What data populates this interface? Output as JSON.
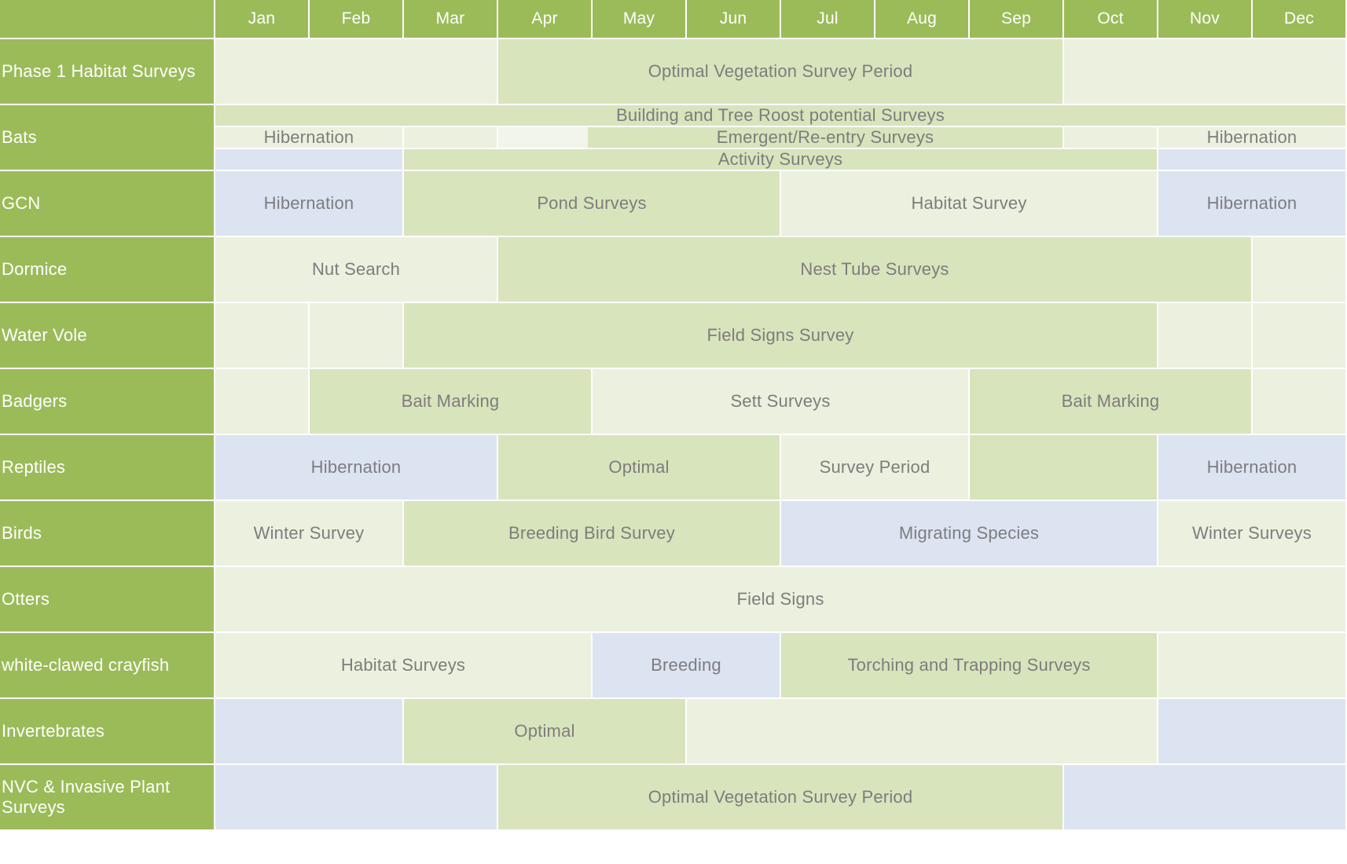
{
  "months": [
    "Jan",
    "Feb",
    "Mar",
    "Apr",
    "May",
    "Jun",
    "Jul",
    "Aug",
    "Sep",
    "Oct",
    "Nov",
    "Dec"
  ],
  "colors": {
    "header": "#9bbb59",
    "light": "#ebf1de",
    "mid": "#d8e4bc",
    "blue": "#dce4f2",
    "pale": "#f1f5ea",
    "text": "#7d7d7d"
  },
  "rows": [
    {
      "name": "Phase 1 Habitat Surveys",
      "lines": [
        [
          {
            "from": 1,
            "to": 3,
            "tone": "light",
            "label": ""
          },
          {
            "from": 4,
            "to": 9,
            "tone": "mid",
            "label": "Optimal Vegetation Survey Period"
          },
          {
            "from": 10,
            "to": 12,
            "tone": "light",
            "label": ""
          }
        ]
      ]
    },
    {
      "name": "Bats",
      "lines": [
        [
          {
            "from": 1,
            "to": 12,
            "tone": "mid",
            "label": "Building and Tree Roost potential Surveys"
          }
        ],
        [
          {
            "from": 1,
            "to": 2,
            "tone": "light",
            "label": "Hibernation"
          },
          {
            "from": 3,
            "to": 3,
            "tone": "light",
            "label": ""
          },
          {
            "from": 4,
            "to": 4.95,
            "tone": "pale",
            "label": ""
          },
          {
            "from": 4.95,
            "to": 9,
            "tone": "mid",
            "label": "Emergent/Re-entry Surveys"
          },
          {
            "from": 10,
            "to": 10,
            "tone": "light",
            "label": ""
          },
          {
            "from": 11,
            "to": 12,
            "tone": "light",
            "label": "Hibernation"
          }
        ],
        [
          {
            "from": 1,
            "to": 2,
            "tone": "blue",
            "label": ""
          },
          {
            "from": 3,
            "to": 10,
            "tone": "mid",
            "label": "Activity Surveys"
          },
          {
            "from": 11,
            "to": 12,
            "tone": "blue",
            "label": ""
          }
        ]
      ]
    },
    {
      "name": "GCN",
      "lines": [
        [
          {
            "from": 1,
            "to": 2,
            "tone": "blue",
            "label": "Hibernation"
          },
          {
            "from": 3,
            "to": 6,
            "tone": "mid",
            "label": "Pond Surveys"
          },
          {
            "from": 7,
            "to": 10,
            "tone": "light",
            "label": "Habitat Survey"
          },
          {
            "from": 11,
            "to": 12,
            "tone": "blue",
            "label": "Hibernation"
          }
        ]
      ]
    },
    {
      "name": "Dormice",
      "lines": [
        [
          {
            "from": 1,
            "to": 3,
            "tone": "light",
            "label": "Nut Search"
          },
          {
            "from": 4,
            "to": 11,
            "tone": "mid",
            "label": "Nest Tube Surveys"
          },
          {
            "from": 12,
            "to": 12,
            "tone": "light",
            "label": ""
          }
        ]
      ]
    },
    {
      "name": "Water Vole",
      "lines": [
        [
          {
            "from": 1,
            "to": 1,
            "tone": "light",
            "label": ""
          },
          {
            "from": 2,
            "to": 2,
            "tone": "light",
            "label": ""
          },
          {
            "from": 3,
            "to": 10,
            "tone": "mid",
            "label": "Field Signs Survey"
          },
          {
            "from": 11,
            "to": 11,
            "tone": "light",
            "label": ""
          },
          {
            "from": 12,
            "to": 12,
            "tone": "light",
            "label": ""
          }
        ]
      ]
    },
    {
      "name": "Badgers",
      "lines": [
        [
          {
            "from": 1,
            "to": 1,
            "tone": "light",
            "label": ""
          },
          {
            "from": 2,
            "to": 4,
            "tone": "mid",
            "label": "Bait Marking"
          },
          {
            "from": 5,
            "to": 8,
            "tone": "light",
            "label": "Sett  Surveys"
          },
          {
            "from": 9,
            "to": 11,
            "tone": "mid",
            "label": "Bait Marking"
          },
          {
            "from": 12,
            "to": 12,
            "tone": "light",
            "label": ""
          }
        ]
      ]
    },
    {
      "name": "Reptiles",
      "lines": [
        [
          {
            "from": 1,
            "to": 3,
            "tone": "blue",
            "label": "Hibernation"
          },
          {
            "from": 4,
            "to": 6,
            "tone": "mid",
            "label": "Optimal"
          },
          {
            "from": 7,
            "to": 8,
            "tone": "light",
            "label": "Survey Period"
          },
          {
            "from": 9,
            "to": 10,
            "tone": "mid",
            "label": ""
          },
          {
            "from": 11,
            "to": 12,
            "tone": "blue",
            "label": "Hibernation"
          }
        ]
      ]
    },
    {
      "name": "Birds",
      "lines": [
        [
          {
            "from": 1,
            "to": 2,
            "tone": "light",
            "label": "Winter Survey"
          },
          {
            "from": 3,
            "to": 6,
            "tone": "mid",
            "label": "Breeding Bird Survey"
          },
          {
            "from": 7,
            "to": 10,
            "tone": "blue",
            "label": "Migrating Species"
          },
          {
            "from": 11,
            "to": 12,
            "tone": "light",
            "label": "Winter Surveys"
          }
        ]
      ]
    },
    {
      "name": "Otters",
      "lines": [
        [
          {
            "from": 1,
            "to": 12,
            "tone": "light",
            "label": "Field Signs"
          }
        ]
      ]
    },
    {
      "name": "white-clawed crayfish",
      "lines": [
        [
          {
            "from": 1,
            "to": 4,
            "tone": "light",
            "label": "Habitat Surveys"
          },
          {
            "from": 5,
            "to": 6,
            "tone": "blue",
            "label": "Breeding"
          },
          {
            "from": 7,
            "to": 10,
            "tone": "mid",
            "label": "Torching and Trapping Surveys"
          },
          {
            "from": 11,
            "to": 12,
            "tone": "light",
            "label": ""
          }
        ]
      ]
    },
    {
      "name": "Invertebrates",
      "lines": [
        [
          {
            "from": 1,
            "to": 2,
            "tone": "blue",
            "label": ""
          },
          {
            "from": 3,
            "to": 5,
            "tone": "mid",
            "label": "Optimal"
          },
          {
            "from": 6,
            "to": 10,
            "tone": "light",
            "label": ""
          },
          {
            "from": 11,
            "to": 12,
            "tone": "blue",
            "label": ""
          }
        ]
      ]
    },
    {
      "name": "NVC & Invasive Plant Surveys",
      "lines": [
        [
          {
            "from": 1,
            "to": 3,
            "tone": "blue",
            "label": ""
          },
          {
            "from": 4,
            "to": 9,
            "tone": "mid",
            "label": "Optimal Vegetation Survey Period"
          },
          {
            "from": 10,
            "to": 12,
            "tone": "blue",
            "label": ""
          }
        ]
      ]
    }
  ]
}
